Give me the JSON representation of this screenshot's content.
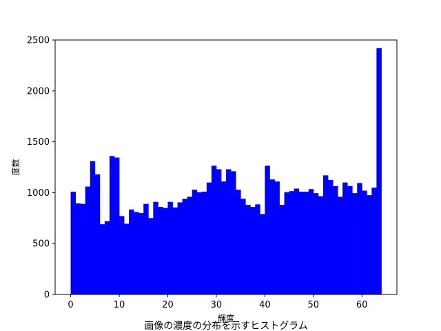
{
  "chart_data": {
    "type": "bar",
    "title": "",
    "caption": "画像の濃度の分布を示すヒストグラム",
    "xlabel": "輝度",
    "ylabel": "度数",
    "xlim": [
      -3.2,
      67.2
    ],
    "ylim": [
      0,
      2500
    ],
    "xticks": [
      0,
      10,
      20,
      30,
      40,
      50,
      60
    ],
    "yticks": [
      0,
      500,
      1000,
      1500,
      2000,
      2500
    ],
    "bar_color": "#0000ff",
    "bin_edges_start": 0,
    "bin_width": 1,
    "values": [
      1010,
      895,
      890,
      1060,
      1310,
      1180,
      690,
      720,
      1360,
      1345,
      770,
      695,
      835,
      810,
      800,
      890,
      750,
      910,
      860,
      850,
      910,
      855,
      905,
      940,
      960,
      1030,
      1005,
      1010,
      1100,
      1265,
      1230,
      1110,
      1230,
      1210,
      1030,
      940,
      880,
      860,
      885,
      790,
      1265,
      1130,
      1110,
      880,
      1005,
      1015,
      1040,
      1010,
      1010,
      1035,
      995,
      965,
      1170,
      1125,
      1065,
      960,
      1100,
      1065,
      995,
      1095,
      1020,
      975,
      1050,
      2420
    ]
  }
}
